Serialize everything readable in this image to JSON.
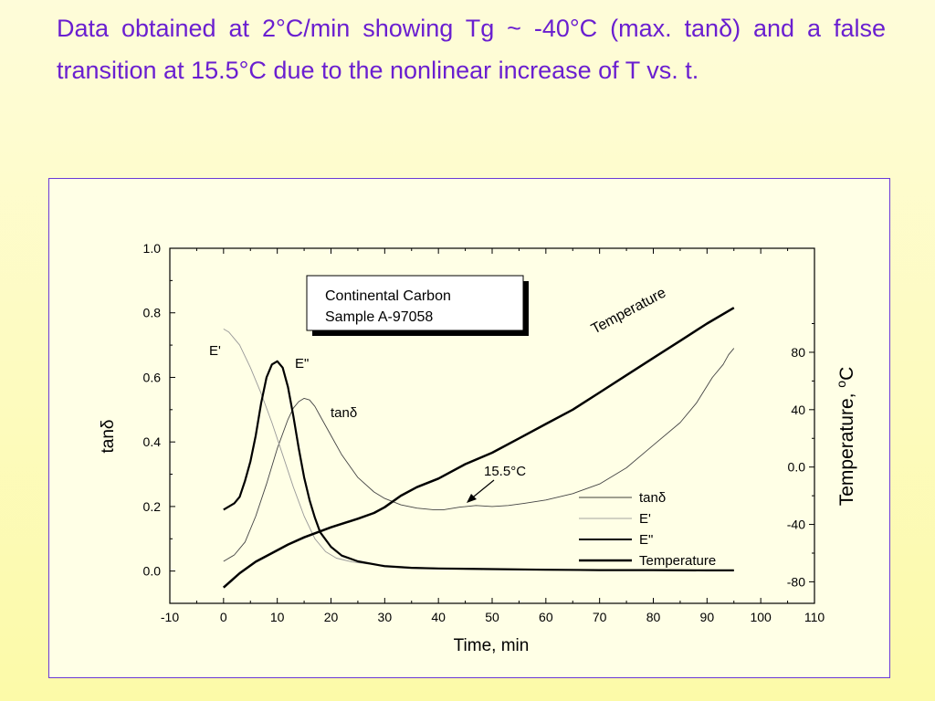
{
  "slide": {
    "title": "Data obtained at 2°C/min showing Tg ~ -40°C (max. tanδ) and a false transition at 15.5°C due to the nonlinear increase of T vs. t."
  },
  "colors": {
    "title": "#6a1fd0",
    "frame": "#6a3ad8",
    "background": "#fdfbbf",
    "axis": "#000000"
  },
  "chart_data": {
    "type": "line",
    "xlabel": "Time, min",
    "ylabel": "tanδ",
    "y2label_main": "Temperature, ",
    "y2label_sup": "o",
    "y2label_unit": "C",
    "xlim": [
      -10,
      110
    ],
    "ylim": [
      -0.1,
      1.0
    ],
    "y2lim": [
      -95,
      152.5
    ],
    "x_ticks": [
      "-10",
      "0",
      "10",
      "20",
      "30",
      "40",
      "50",
      "60",
      "70",
      "80",
      "90",
      "100",
      "110"
    ],
    "y_ticks": [
      "0.0",
      "0.2",
      "0.4",
      "0.6",
      "0.8",
      "1.0"
    ],
    "y2_ticks": [
      "-80",
      "-40",
      "0.0",
      "40",
      "80"
    ],
    "sample_box": {
      "line1": "Continental Carbon",
      "line2": "Sample A-97058"
    },
    "labels": {
      "e_prime": "E'",
      "e_double_prime": "E\"",
      "tan_delta": "tanδ",
      "temperature": "Temperature",
      "annotation": "15.5°C"
    },
    "legend": {
      "position": "bottom-right",
      "entries": [
        "tanδ",
        "E'",
        "E\"",
        "Temperature"
      ]
    },
    "series": [
      {
        "name": "tanδ",
        "axis": "left",
        "x": [
          0,
          2,
          4,
          6,
          8,
          10,
          12,
          13,
          14,
          15,
          16,
          17,
          18,
          20,
          22,
          25,
          28,
          30,
          33,
          36,
          39,
          41,
          44,
          47,
          50,
          53,
          56,
          60,
          65,
          70,
          75,
          80,
          85,
          88,
          91,
          93,
          94,
          95
        ],
        "y": [
          0.03,
          0.05,
          0.09,
          0.17,
          0.27,
          0.38,
          0.47,
          0.505,
          0.525,
          0.535,
          0.53,
          0.51,
          0.48,
          0.42,
          0.36,
          0.29,
          0.245,
          0.225,
          0.205,
          0.195,
          0.19,
          0.19,
          0.198,
          0.203,
          0.2,
          0.203,
          0.21,
          0.22,
          0.24,
          0.27,
          0.32,
          0.39,
          0.46,
          0.52,
          0.6,
          0.64,
          0.67,
          0.69
        ]
      },
      {
        "name": "E'",
        "axis": "left",
        "x": [
          0,
          1,
          3,
          5,
          7,
          9,
          11,
          13,
          15,
          17,
          19,
          21,
          24,
          27,
          30,
          35,
          40,
          50,
          60,
          70,
          80,
          90,
          95
        ],
        "y": [
          0.75,
          0.74,
          0.7,
          0.63,
          0.55,
          0.46,
          0.36,
          0.26,
          0.17,
          0.1,
          0.06,
          0.04,
          0.028,
          0.022,
          0.018,
          0.012,
          0.009,
          0.006,
          0.004,
          0.003,
          0.002,
          0.002,
          0.002
        ]
      },
      {
        "name": "E\"",
        "axis": "left",
        "x": [
          0,
          1,
          2,
          3,
          4,
          5,
          6,
          7,
          8,
          9,
          10,
          11,
          12,
          13,
          14,
          15,
          16,
          17,
          18,
          20,
          22,
          25,
          30,
          35,
          40,
          50,
          60,
          70,
          80,
          90,
          95
        ],
        "y": [
          0.19,
          0.2,
          0.21,
          0.23,
          0.28,
          0.34,
          0.42,
          0.52,
          0.6,
          0.64,
          0.65,
          0.63,
          0.57,
          0.48,
          0.38,
          0.29,
          0.22,
          0.165,
          0.12,
          0.075,
          0.048,
          0.03,
          0.015,
          0.01,
          0.008,
          0.006,
          0.004,
          0.003,
          0.003,
          0.002,
          0.002
        ]
      },
      {
        "name": "Temperature",
        "axis": "right",
        "x": [
          0,
          3,
          6,
          9,
          12,
          15,
          20,
          25,
          28,
          30,
          33,
          36,
          40,
          45,
          50,
          55,
          60,
          65,
          70,
          75,
          80,
          85,
          90,
          95
        ],
        "y": [
          -84,
          -74,
          -66,
          -60,
          -54,
          -49,
          -42,
          -36,
          -32,
          -28,
          -20,
          -14,
          -8,
          2,
          10,
          20,
          30,
          40,
          52,
          64,
          76,
          88,
          100,
          111
        ]
      }
    ]
  }
}
